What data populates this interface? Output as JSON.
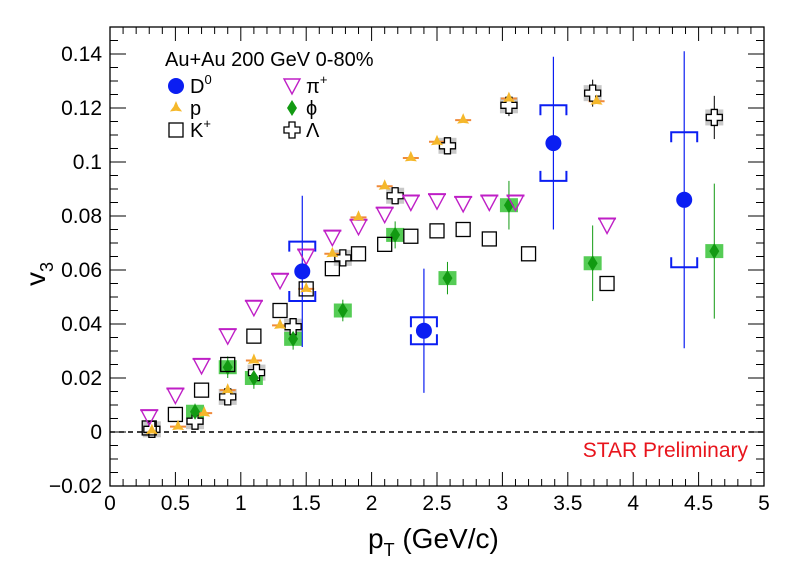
{
  "chart_data": {
    "type": "scatter",
    "header": "Au+Au 200 GeV 0-80%",
    "xlabel": {
      "main": "p",
      "sub": "T",
      "rest": " (GeV/c)"
    },
    "ylabel": {
      "main": "v",
      "sub": "3"
    },
    "xlim": [
      0,
      5
    ],
    "ylim": [
      -0.02,
      0.15
    ],
    "x_ticks": [
      0,
      0.5,
      1,
      1.5,
      2,
      2.5,
      3,
      3.5,
      4,
      4.5,
      5
    ],
    "x_tick_labels": [
      "0",
      "0.5",
      "1",
      "1.5",
      "2",
      "2.5",
      "3",
      "3.5",
      "4",
      "4.5",
      "5"
    ],
    "y_ticks": [
      -0.02,
      0,
      0.02,
      0.04,
      0.06,
      0.08,
      0.1,
      0.12,
      0.14
    ],
    "y_tick_labels": [
      "−0.02",
      "0",
      "0.02",
      "0.04",
      "0.06",
      "0.08",
      "0.1",
      "0.12",
      "0.14"
    ],
    "zero_line": true,
    "grid": false,
    "legend_position": "top-left",
    "annotation": {
      "text": "STAR Preliminary",
      "color": "#e8141c"
    },
    "colors": {
      "d0": "#0b1ef2",
      "pi": "#bf1fc6",
      "p": "#f5b82b",
      "phi": "#129a12",
      "k": "#000000",
      "lambda": "#000000",
      "lambda_sys": "#c8c8c8",
      "phi_sys": "#55cc55",
      "prelim": "#e8141c"
    },
    "series": [
      {
        "key": "d0",
        "legend": {
          "main": "D",
          "sup": "0"
        },
        "marker": "filled-circle",
        "points": [
          {
            "x": 1.47,
            "y": 0.0595,
            "err": 0.028,
            "sys": 0.011
          },
          {
            "x": 2.4,
            "y": 0.0375,
            "err": 0.023,
            "sys": 0.005
          },
          {
            "x": 3.39,
            "y": 0.107,
            "err": 0.032,
            "sys": 0.014
          },
          {
            "x": 4.39,
            "y": 0.086,
            "err": 0.055,
            "sys": 0.025
          }
        ]
      },
      {
        "key": "pi",
        "legend": {
          "main": "π",
          "sup": "+"
        },
        "marker": "open-triangle-down",
        "points": [
          {
            "x": 0.3,
            "y": 0.0055
          },
          {
            "x": 0.5,
            "y": 0.0135
          },
          {
            "x": 0.7,
            "y": 0.0245
          },
          {
            "x": 0.9,
            "y": 0.0355
          },
          {
            "x": 1.1,
            "y": 0.046
          },
          {
            "x": 1.3,
            "y": 0.056
          },
          {
            "x": 1.5,
            "y": 0.065
          },
          {
            "x": 1.7,
            "y": 0.072
          },
          {
            "x": 1.9,
            "y": 0.076
          },
          {
            "x": 2.1,
            "y": 0.0805
          },
          {
            "x": 2.3,
            "y": 0.085
          },
          {
            "x": 2.5,
            "y": 0.0855
          },
          {
            "x": 2.7,
            "y": 0.0845
          },
          {
            "x": 2.9,
            "y": 0.085
          },
          {
            "x": 3.1,
            "y": 0.085
          },
          {
            "x": 3.8,
            "y": 0.0765
          }
        ]
      },
      {
        "key": "p",
        "legend": {
          "main": "p",
          "sup": ""
        },
        "marker": "filled-star",
        "points": [
          {
            "x": 0.32,
            "y": 0.0005
          },
          {
            "x": 0.52,
            "y": 0.002
          },
          {
            "x": 0.72,
            "y": 0.007
          },
          {
            "x": 0.9,
            "y": 0.0155
          },
          {
            "x": 1.1,
            "y": 0.0265
          },
          {
            "x": 1.3,
            "y": 0.0395
          },
          {
            "x": 1.5,
            "y": 0.053
          },
          {
            "x": 1.7,
            "y": 0.066
          },
          {
            "x": 1.9,
            "y": 0.0795
          },
          {
            "x": 2.1,
            "y": 0.091
          },
          {
            "x": 2.3,
            "y": 0.1015
          },
          {
            "x": 2.5,
            "y": 0.1075
          },
          {
            "x": 2.7,
            "y": 0.1155
          },
          {
            "x": 3.05,
            "y": 0.1235
          },
          {
            "x": 3.72,
            "y": 0.1225
          }
        ]
      },
      {
        "key": "phi",
        "legend": {
          "main": "ϕ",
          "sup": ""
        },
        "marker": "filled-diamond",
        "points": [
          {
            "x": 0.65,
            "y": 0.0075,
            "err": 0.003
          },
          {
            "x": 0.9,
            "y": 0.024,
            "err": 0.004
          },
          {
            "x": 1.1,
            "y": 0.02,
            "err": 0.004
          },
          {
            "x": 1.4,
            "y": 0.0345,
            "err": 0.004
          },
          {
            "x": 1.78,
            "y": 0.045,
            "err": 0.004
          },
          {
            "x": 2.18,
            "y": 0.073,
            "err": 0.005
          },
          {
            "x": 2.58,
            "y": 0.057,
            "err": 0.006
          },
          {
            "x": 3.05,
            "y": 0.084,
            "err": 0.009
          },
          {
            "x": 3.69,
            "y": 0.0625,
            "err": 0.014
          },
          {
            "x": 4.62,
            "y": 0.067,
            "err": 0.025
          }
        ]
      },
      {
        "key": "k",
        "legend": {
          "main": "K",
          "sup": "+"
        },
        "marker": "open-square",
        "points": [
          {
            "x": 0.3,
            "y": 0.0015
          },
          {
            "x": 0.5,
            "y": 0.0065
          },
          {
            "x": 0.7,
            "y": 0.0155
          },
          {
            "x": 0.9,
            "y": 0.025
          },
          {
            "x": 1.1,
            "y": 0.0355
          },
          {
            "x": 1.3,
            "y": 0.045
          },
          {
            "x": 1.5,
            "y": 0.053
          },
          {
            "x": 1.7,
            "y": 0.0605
          },
          {
            "x": 1.9,
            "y": 0.066
          },
          {
            "x": 2.1,
            "y": 0.0695
          },
          {
            "x": 2.3,
            "y": 0.0725
          },
          {
            "x": 2.5,
            "y": 0.0745
          },
          {
            "x": 2.7,
            "y": 0.075
          },
          {
            "x": 2.9,
            "y": 0.0715
          },
          {
            "x": 3.2,
            "y": 0.066
          },
          {
            "x": 3.8,
            "y": 0.055
          }
        ]
      },
      {
        "key": "lambda",
        "legend": {
          "main": "Λ",
          "sup": ""
        },
        "marker": "open-cross",
        "points": [
          {
            "x": 0.32,
            "y": 0.001,
            "err": 0.002
          },
          {
            "x": 0.65,
            "y": 0.004,
            "err": 0.002
          },
          {
            "x": 0.9,
            "y": 0.013,
            "err": 0.003
          },
          {
            "x": 1.12,
            "y": 0.022,
            "err": 0.003
          },
          {
            "x": 1.4,
            "y": 0.039,
            "err": 0.003
          },
          {
            "x": 1.78,
            "y": 0.0645,
            "err": 0.003
          },
          {
            "x": 2.18,
            "y": 0.0875,
            "err": 0.003
          },
          {
            "x": 2.58,
            "y": 0.106,
            "err": 0.003
          },
          {
            "x": 3.05,
            "y": 0.121,
            "err": 0.004
          },
          {
            "x": 3.69,
            "y": 0.1255,
            "err": 0.005
          },
          {
            "x": 4.62,
            "y": 0.1165,
            "err": 0.008
          }
        ]
      }
    ]
  }
}
